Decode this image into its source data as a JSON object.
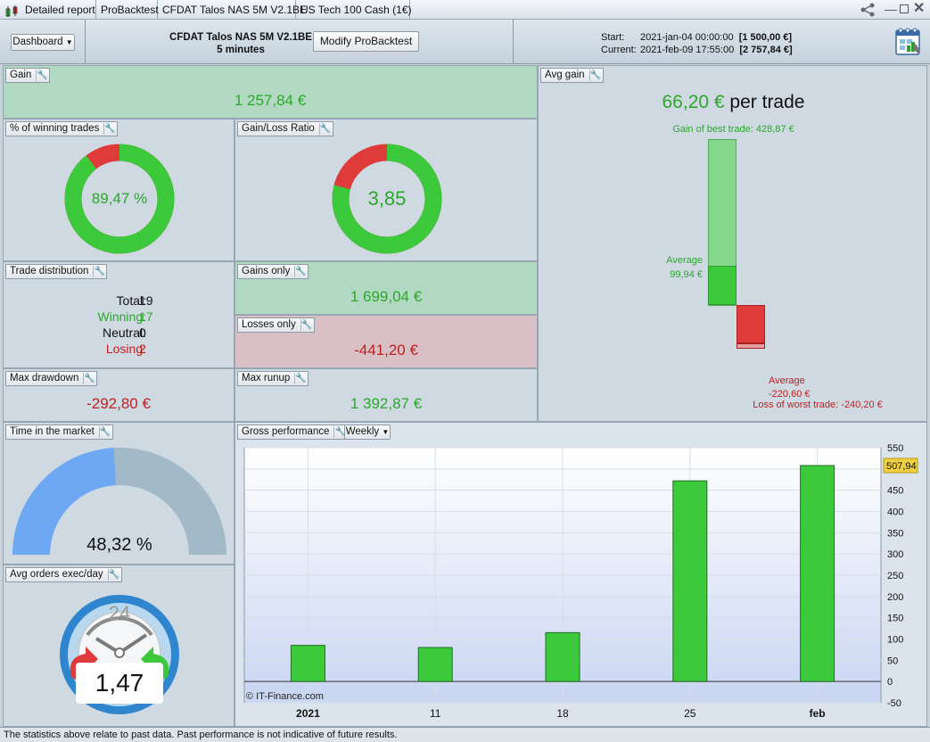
{
  "tabs": [
    {
      "label": "Detailed report"
    },
    {
      "label": "ProBacktest"
    },
    {
      "label": "CFDAT Talos NAS 5M V2.1BE"
    },
    {
      "label": "US Tech 100 Cash (1€)"
    }
  ],
  "toolbar": {
    "dashboard_label": "Dashboard",
    "strategy_name": "CFDAT Talos NAS 5M V2.1BE",
    "timeframe": "5 minutes",
    "modify_label": "Modify ProBacktest",
    "start_label": "Start:",
    "start_date": "2021-jan-04 00:00:00",
    "start_value": "[1 500,00 €]",
    "current_label": "Current:",
    "current_date": "2021-feb-09 17:55:00",
    "current_value": "[2 757,84 €]"
  },
  "gain": {
    "title": "Gain",
    "value": "1 257,84 €"
  },
  "winning_pct": {
    "title": "% of winning trades",
    "value": "89,47 %",
    "fraction": 0.8947
  },
  "gain_loss": {
    "title": "Gain/Loss Ratio",
    "value": "3,85",
    "fraction": 0.79
  },
  "distribution": {
    "title": "Trade distribution",
    "total_label": "Total:",
    "total": "19",
    "winning_label": "Winning:",
    "winning": "17",
    "neutral_label": "Neutral:",
    "neutral": "0",
    "losing_label": "Losing:",
    "losing": "2"
  },
  "gains_only": {
    "title": "Gains only",
    "value": "1 699,04 €"
  },
  "losses_only": {
    "title": "Losses only",
    "value": "-441,20 €"
  },
  "max_drawdown": {
    "title": "Max drawdown",
    "value": "-292,80 €"
  },
  "max_runup": {
    "title": "Max runup",
    "value": "1 392,87 €"
  },
  "avg_gain": {
    "title": "Avg gain",
    "value": "66,20 €",
    "per_trade": "per trade",
    "best_label": "Gain of best trade: 428,87 €",
    "avg_pos_label": "Average",
    "avg_pos_value": "99,94 €",
    "avg_neg_label": "Average",
    "avg_neg_value": "-220,60 €",
    "worst_label": "Loss of worst trade: -240,20 €",
    "best": 428.87,
    "avg_pos": 99.94,
    "avg_neg": -220.6,
    "worst": -240.2
  },
  "time_market": {
    "title": "Time in the market",
    "value": "48,32 %",
    "fraction": 0.4832
  },
  "avg_orders": {
    "title": "Avg orders exec/day",
    "value": "1,47",
    "clock": "24"
  },
  "gross": {
    "title": "Gross performance",
    "period": "Weekly",
    "copyright": "© IT-Finance.com",
    "current_label": "507,94"
  },
  "chart_data": {
    "type": "bar",
    "categories": [
      "2021",
      "11",
      "18",
      "25",
      "feb"
    ],
    "values": [
      85,
      80,
      115,
      472,
      508
    ],
    "ylim": [
      -50,
      550
    ],
    "yticks": [
      "550",
      "500",
      "450",
      "400",
      "350",
      "300",
      "250",
      "200",
      "150",
      "100",
      "50",
      "0",
      "-50"
    ],
    "ytick_values": [
      550,
      500,
      450,
      400,
      350,
      300,
      250,
      200,
      150,
      100,
      50,
      0,
      -50
    ],
    "grid": true
  },
  "footer": "The statistics above relate to past data. Past performance is not indicative of future results.",
  "colors": {
    "green": "#3cc93c",
    "red": "#e03b3b",
    "accent": "#2ea62e"
  }
}
